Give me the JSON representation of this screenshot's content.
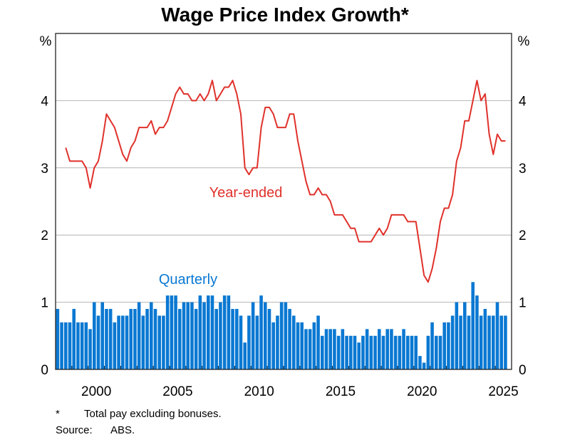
{
  "chart_data": {
    "type": "bar+line",
    "title": "Wage Price Index Growth*",
    "ylabel_left": "%",
    "ylabel_right": "%",
    "ylim": [
      0,
      5
    ],
    "yticks": [
      0,
      1,
      2,
      3,
      4
    ],
    "xlim": [
      "1998-Q1",
      "2025-Q4"
    ],
    "xticks": [
      "2000",
      "2005",
      "2010",
      "2015",
      "2020",
      "2025"
    ],
    "grid": "horizontal",
    "colors": {
      "year_ended": "#e0312b",
      "quarterly": "#0a78d2",
      "grid": "#b4b4b4"
    },
    "x": [
      "1998-Q1",
      "1998-Q2",
      "1998-Q3",
      "1998-Q4",
      "1999-Q1",
      "1999-Q2",
      "1999-Q3",
      "1999-Q4",
      "2000-Q1",
      "2000-Q2",
      "2000-Q3",
      "2000-Q4",
      "2001-Q1",
      "2001-Q2",
      "2001-Q3",
      "2001-Q4",
      "2002-Q1",
      "2002-Q2",
      "2002-Q3",
      "2002-Q4",
      "2003-Q1",
      "2003-Q2",
      "2003-Q3",
      "2003-Q4",
      "2004-Q1",
      "2004-Q2",
      "2004-Q3",
      "2004-Q4",
      "2005-Q1",
      "2005-Q2",
      "2005-Q3",
      "2005-Q4",
      "2006-Q1",
      "2006-Q2",
      "2006-Q3",
      "2006-Q4",
      "2007-Q1",
      "2007-Q2",
      "2007-Q3",
      "2007-Q4",
      "2008-Q1",
      "2008-Q2",
      "2008-Q3",
      "2008-Q4",
      "2009-Q1",
      "2009-Q2",
      "2009-Q3",
      "2009-Q4",
      "2010-Q1",
      "2010-Q2",
      "2010-Q3",
      "2010-Q4",
      "2011-Q1",
      "2011-Q2",
      "2011-Q3",
      "2011-Q4",
      "2012-Q1",
      "2012-Q2",
      "2012-Q3",
      "2012-Q4",
      "2013-Q1",
      "2013-Q2",
      "2013-Q3",
      "2013-Q4",
      "2014-Q1",
      "2014-Q2",
      "2014-Q3",
      "2014-Q4",
      "2015-Q1",
      "2015-Q2",
      "2015-Q3",
      "2015-Q4",
      "2016-Q1",
      "2016-Q2",
      "2016-Q3",
      "2016-Q4",
      "2017-Q1",
      "2017-Q2",
      "2017-Q3",
      "2017-Q4",
      "2018-Q1",
      "2018-Q2",
      "2018-Q3",
      "2018-Q4",
      "2019-Q1",
      "2019-Q2",
      "2019-Q3",
      "2019-Q4",
      "2020-Q1",
      "2020-Q2",
      "2020-Q3",
      "2020-Q4",
      "2021-Q1",
      "2021-Q2",
      "2021-Q3",
      "2021-Q4",
      "2022-Q1",
      "2022-Q2",
      "2022-Q3",
      "2022-Q4",
      "2023-Q1",
      "2023-Q2",
      "2023-Q3",
      "2023-Q4",
      "2024-Q1",
      "2024-Q2",
      "2024-Q3",
      "2024-Q4",
      "2025-Q1",
      "2025-Q2",
      "2025-Q3"
    ],
    "series": [
      {
        "name": "Quarterly",
        "type": "bar",
        "values": [
          0.9,
          0.7,
          0.7,
          0.7,
          0.9,
          0.7,
          0.7,
          0.7,
          0.6,
          1.0,
          0.8,
          1.0,
          0.9,
          0.9,
          0.7,
          0.8,
          0.8,
          0.8,
          0.9,
          0.9,
          1.0,
          0.8,
          0.9,
          1.0,
          0.9,
          0.8,
          0.8,
          1.1,
          1.1,
          1.1,
          0.9,
          1.0,
          1.0,
          1.0,
          0.9,
          1.1,
          1.0,
          1.1,
          1.1,
          0.9,
          1.0,
          1.1,
          1.1,
          0.9,
          0.9,
          0.8,
          0.4,
          0.8,
          1.0,
          0.8,
          1.1,
          1.0,
          0.9,
          0.7,
          0.8,
          1.0,
          1.0,
          0.9,
          0.8,
          0.7,
          0.7,
          0.6,
          0.6,
          0.7,
          0.8,
          0.5,
          0.6,
          0.6,
          0.6,
          0.5,
          0.6,
          0.5,
          0.5,
          0.5,
          0.4,
          0.5,
          0.6,
          0.5,
          0.5,
          0.6,
          0.5,
          0.6,
          0.6,
          0.5,
          0.5,
          0.6,
          0.5,
          0.5,
          0.5,
          0.2,
          0.1,
          0.5,
          0.7,
          0.5,
          0.5,
          0.7,
          0.7,
          0.8,
          1.0,
          0.8,
          1.0,
          0.8,
          1.3,
          1.1,
          0.8,
          0.9,
          0.8,
          0.8,
          1.0,
          0.8,
          0.8
        ]
      },
      {
        "name": "Year-ended",
        "type": "line",
        "values": [
          null,
          null,
          3.3,
          3.1,
          3.1,
          3.1,
          3.1,
          3.0,
          2.7,
          3.0,
          3.1,
          3.4,
          3.8,
          3.7,
          3.6,
          3.4,
          3.2,
          3.1,
          3.3,
          3.4,
          3.6,
          3.6,
          3.6,
          3.7,
          3.5,
          3.6,
          3.6,
          3.7,
          3.9,
          4.1,
          4.2,
          4.1,
          4.1,
          4.0,
          4.0,
          4.1,
          4.0,
          4.1,
          4.3,
          4.0,
          4.1,
          4.2,
          4.2,
          4.3,
          4.1,
          3.8,
          3.0,
          2.9,
          3.0,
          3.0,
          3.6,
          3.9,
          3.9,
          3.8,
          3.6,
          3.6,
          3.6,
          3.8,
          3.8,
          3.4,
          3.1,
          2.8,
          2.6,
          2.6,
          2.7,
          2.6,
          2.6,
          2.5,
          2.3,
          2.3,
          2.3,
          2.2,
          2.1,
          2.1,
          1.9,
          1.9,
          1.9,
          1.9,
          2.0,
          2.1,
          2.0,
          2.1,
          2.3,
          2.3,
          2.3,
          2.3,
          2.2,
          2.2,
          2.2,
          1.8,
          1.4,
          1.3,
          1.5,
          1.8,
          2.2,
          2.4,
          2.4,
          2.6,
          3.1,
          3.3,
          3.7,
          3.7,
          4.0,
          4.3,
          4.0,
          4.1,
          3.5,
          3.2,
          3.5,
          3.4,
          3.4
        ]
      }
    ],
    "annotations": {
      "year_ended": "Year-ended",
      "quarterly": "Quarterly"
    },
    "footnotes": {
      "star": "*",
      "note": "Total pay excluding bonuses.",
      "source_label": "Source:",
      "source": "ABS."
    }
  }
}
